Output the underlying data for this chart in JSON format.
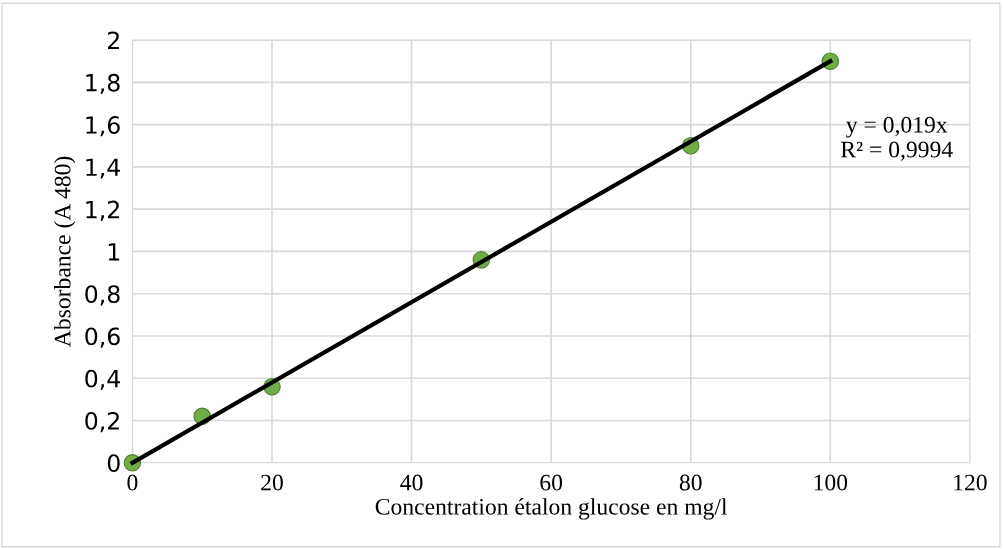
{
  "chart_data": {
    "type": "scatter",
    "xlabel": "Concentration étalon glucose en mg/l",
    "ylabel": "Absorbance (A 480)",
    "x": [
      0,
      10,
      20,
      50,
      80,
      100
    ],
    "series": [
      {
        "color": "#70ad47",
        "marker": "circle",
        "values": [
          0,
          0.22,
          0.36,
          0.96,
          1.5,
          1.9
        ]
      },
      {
        "type": "line",
        "marker": "none",
        "color": "#000000",
        "x": [
          0,
          100
        ],
        "values": [
          0,
          1.9
        ]
      }
    ],
    "annotations": [
      "y = 0,019x\nR² = 0,9994"
    ],
    "xlim": [
      0,
      120
    ],
    "xticks": [
      0,
      20,
      40,
      60,
      80,
      100,
      120
    ],
    "ylim": [
      0,
      2
    ],
    "yticks": [
      0,
      {
        "value": 0.2,
        "label": "0,2"
      },
      {
        "value": 0.4,
        "label": "0,4"
      },
      {
        "value": 0.6,
        "label": "0,6"
      },
      {
        "value": 0.8,
        "label": "0,8"
      },
      1,
      {
        "value": 1.2,
        "label": "1,2"
      },
      {
        "value": 1.4,
        "label": "1,4"
      },
      {
        "value": 1.6,
        "label": "1,6"
      },
      {
        "value": 1.8,
        "label": "1,8"
      },
      2
    ],
    "grid": true,
    "legend": false
  }
}
